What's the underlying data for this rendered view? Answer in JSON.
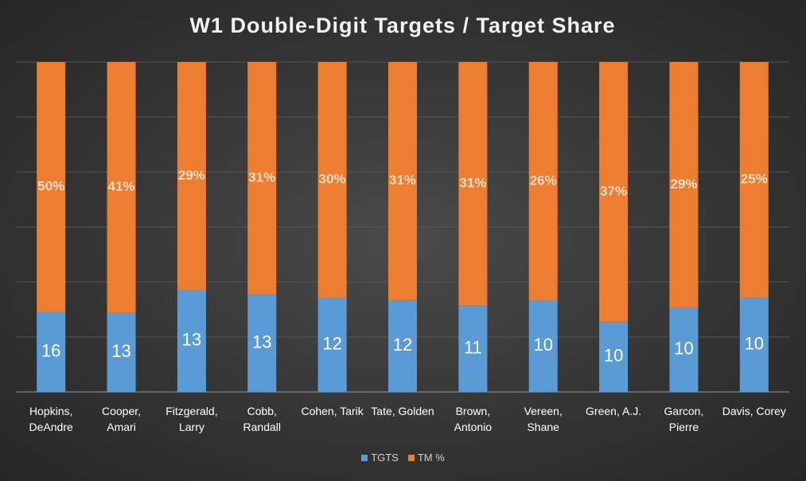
{
  "chart_data": {
    "type": "stacked100",
    "title": "W1 Double-Digit Targets  / Target Share",
    "categories": [
      "Hopkins, DeAndre",
      "Cooper, Amari",
      "Fitzgerald, Larry",
      "Cobb, Randall",
      "Cohen, Tarik",
      "Tate, Golden",
      "Brown, Antonio",
      "Vereen, Shane",
      "Green, A.J.",
      "Garcon, Pierre",
      "Davis, Corey"
    ],
    "series": [
      {
        "name": "TGTS",
        "color": "#5b9bd5",
        "values": [
          16,
          13,
          13,
          13,
          12,
          12,
          11,
          10,
          10,
          10,
          10
        ]
      },
      {
        "name": "TM %",
        "color": "#ed7d31",
        "values": [
          50,
          41,
          29,
          31,
          30,
          31,
          31,
          26,
          37,
          29,
          25
        ],
        "value_labels": [
          "50%",
          "41%",
          "29%",
          "31%",
          "30%",
          "31%",
          "31%",
          "26%",
          "37%",
          "29%",
          "25%"
        ]
      }
    ],
    "grid": true,
    "legend": "bottom"
  }
}
